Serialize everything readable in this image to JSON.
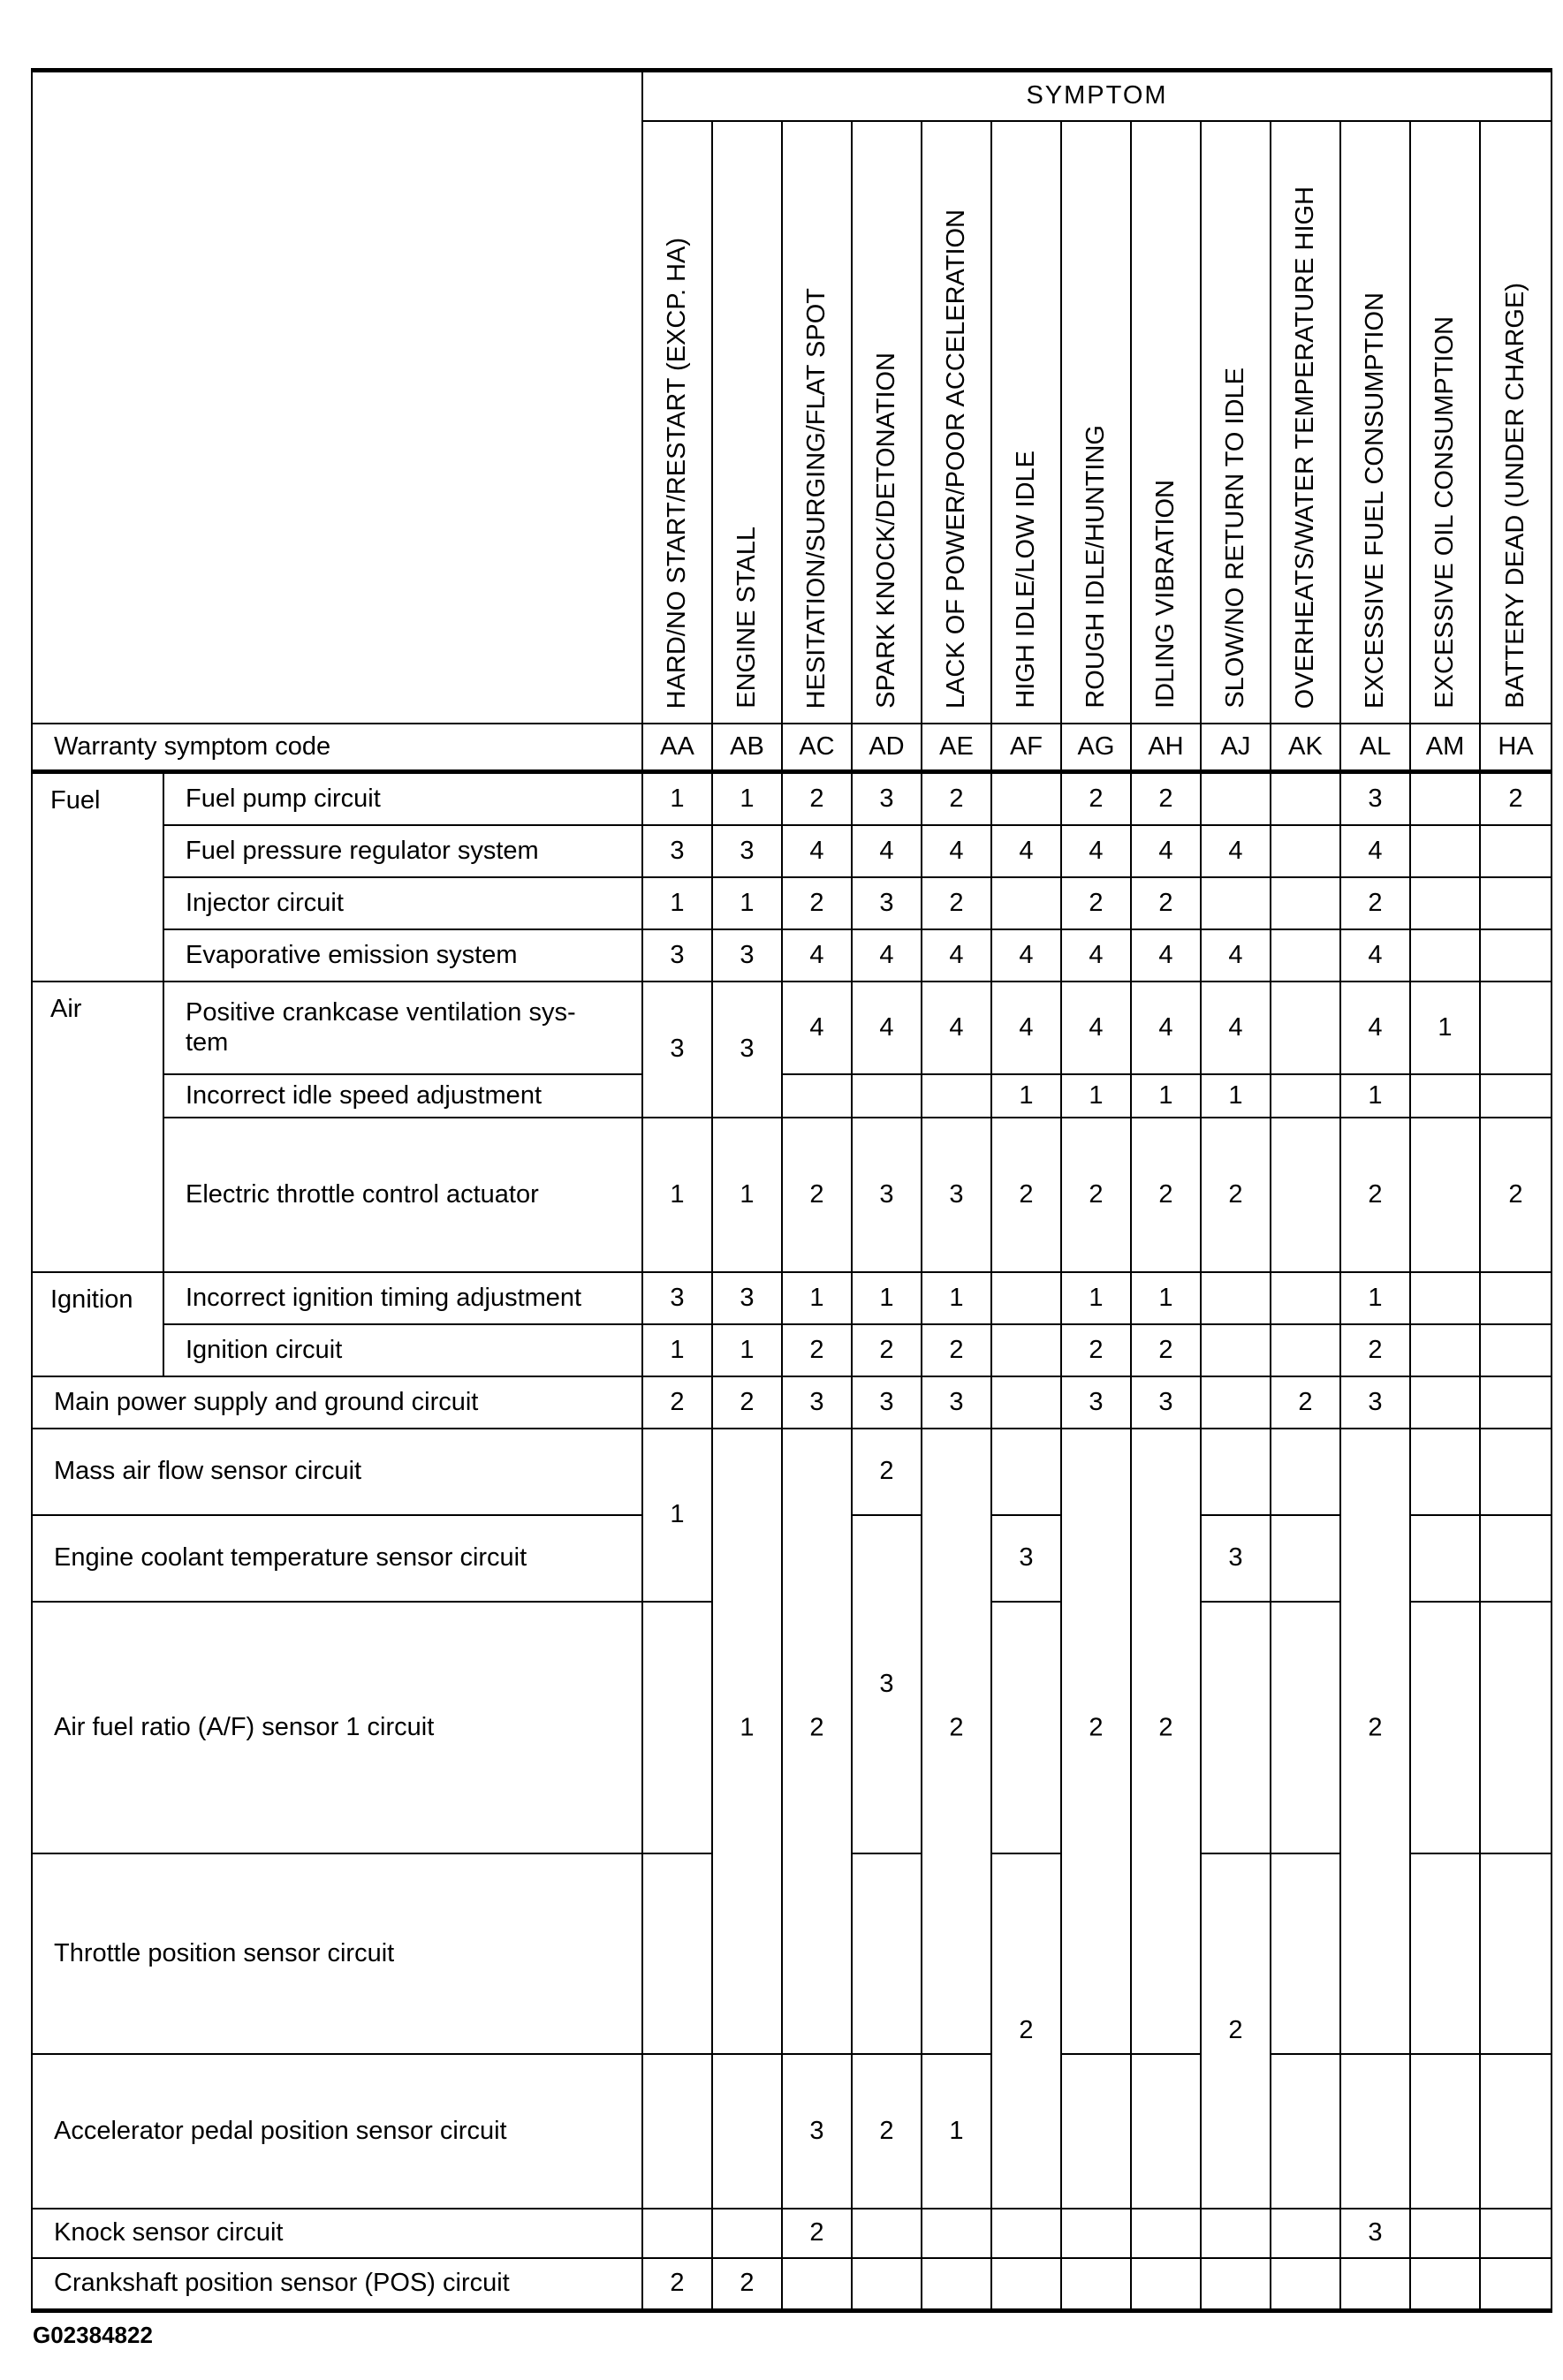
{
  "header": {
    "symptom_label": "SYMPTOM",
    "warranty_label": "Warranty symptom code",
    "columns": [
      {
        "code": "AA",
        "symptom": "HARD/NO START/RESTART (EXCP. HA)"
      },
      {
        "code": "AB",
        "symptom": "ENGINE STALL"
      },
      {
        "code": "AC",
        "symptom": "HESITATION/SURGING/FLAT SPOT"
      },
      {
        "code": "AD",
        "symptom": "SPARK KNOCK/DETONATION"
      },
      {
        "code": "AE",
        "symptom": "LACK OF POWER/POOR ACCELERATION"
      },
      {
        "code": "AF",
        "symptom": "HIGH IDLE/LOW IDLE"
      },
      {
        "code": "AG",
        "symptom": "ROUGH IDLE/HUNTING"
      },
      {
        "code": "AH",
        "symptom": "IDLING VIBRATION"
      },
      {
        "code": "AJ",
        "symptom": "SLOW/NO RETURN TO IDLE"
      },
      {
        "code": "AK",
        "symptom": "OVERHEATS/WATER TEMPERATURE HIGH"
      },
      {
        "code": "AL",
        "symptom": "EXCESSIVE FUEL CONSUMPTION"
      },
      {
        "code": "AM",
        "symptom": "EXCESSIVE OIL CONSUMPTION"
      },
      {
        "code": "HA",
        "symptom": "BATTERY DEAD (UNDER CHARGE)"
      }
    ]
  },
  "groups": [
    {
      "label": "Fuel"
    },
    {
      "label": "Air"
    },
    {
      "label": "Ignition"
    }
  ],
  "rows": [
    {
      "label": "Fuel pump circuit",
      "v": [
        "1",
        "1",
        "2",
        "3",
        "2",
        "",
        "2",
        "2",
        "",
        "",
        "3",
        "",
        "2"
      ]
    },
    {
      "label": "Fuel pressure regulator system",
      "v": [
        "3",
        "3",
        "4",
        "4",
        "4",
        "4",
        "4",
        "4",
        "4",
        "",
        "4",
        "",
        ""
      ]
    },
    {
      "label": "Injector circuit",
      "v": [
        "1",
        "1",
        "2",
        "3",
        "2",
        "",
        "2",
        "2",
        "",
        "",
        "2",
        "",
        ""
      ]
    },
    {
      "label": "Evaporative emission system",
      "v": [
        "3",
        "3",
        "4",
        "4",
        "4",
        "4",
        "4",
        "4",
        "4",
        "",
        "4",
        "",
        ""
      ]
    },
    {
      "label": "Positive crankcase ventilation sys-\ntem",
      "v": [
        "3",
        "3",
        "4",
        "4",
        "4",
        "4",
        "4",
        "4",
        "4",
        "",
        "4",
        "1",
        ""
      ]
    },
    {
      "label": "Incorrect idle speed adjustment",
      "v": [
        "",
        "",
        "",
        "",
        "",
        "1",
        "1",
        "1",
        "1",
        "",
        "1",
        "",
        ""
      ]
    },
    {
      "label": "Electric throttle control actuator",
      "v": [
        "1",
        "1",
        "2",
        "3",
        "3",
        "2",
        "2",
        "2",
        "2",
        "",
        "2",
        "",
        "2"
      ]
    },
    {
      "label": "Incorrect ignition timing adjustment",
      "v": [
        "3",
        "3",
        "1",
        "1",
        "1",
        "",
        "1",
        "1",
        "",
        "",
        "1",
        "",
        ""
      ]
    },
    {
      "label": "Ignition circuit",
      "v": [
        "1",
        "1",
        "2",
        "2",
        "2",
        "",
        "2",
        "2",
        "",
        "",
        "2",
        "",
        ""
      ]
    },
    {
      "label": "Main power supply and ground circuit",
      "v": [
        "2",
        "2",
        "3",
        "3",
        "3",
        "",
        "3",
        "3",
        "",
        "2",
        "3",
        "",
        ""
      ]
    },
    {
      "label": "Mass air flow sensor circuit",
      "v": [
        "1",
        "",
        "",
        "2",
        "",
        "",
        "",
        "",
        "",
        "",
        "",
        "",
        ""
      ]
    },
    {
      "label": "Engine coolant temperature sensor circuit",
      "v": [
        "",
        "",
        "",
        "",
        "",
        "3",
        "",
        "",
        "3",
        "",
        "",
        "",
        ""
      ]
    },
    {
      "label": "Air fuel ratio (A/F) sensor 1 circuit",
      "v": [
        "",
        "1",
        "2",
        "3",
        "2",
        "",
        "2",
        "2",
        "",
        "",
        "2",
        "",
        ""
      ]
    },
    {
      "label": "Throttle position sensor circuit",
      "v": [
        "",
        "",
        "",
        "",
        "",
        "2",
        "",
        "",
        "2",
        "",
        "",
        "",
        ""
      ]
    },
    {
      "label": "Accelerator pedal position sensor circuit",
      "v": [
        "",
        "",
        "3",
        "2",
        "1",
        "",
        "",
        "",
        "",
        "",
        "",
        "",
        ""
      ]
    },
    {
      "label": "Knock sensor circuit",
      "v": [
        "",
        "",
        "2",
        "",
        "",
        "",
        "",
        "",
        "",
        "",
        "3",
        "",
        ""
      ]
    },
    {
      "label": "Crankshaft position sensor (POS) circuit",
      "v": [
        "2",
        "2",
        "",
        "",
        "",
        "",
        "",
        "",
        "",
        "",
        "",
        "",
        ""
      ]
    }
  ],
  "footer": {
    "figure_code": "G02384822"
  },
  "colors": {
    "ink": "#000000",
    "paper": "#ffffff"
  }
}
